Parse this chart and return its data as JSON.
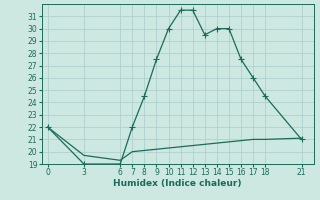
{
  "xlabel": "Humidex (Indice chaleur)",
  "bg_color": "#cce8e0",
  "grid_color": "#aacccc",
  "line_color": "#1a6b5a",
  "upper_x": [
    0,
    3,
    6,
    7,
    8,
    9,
    10,
    11,
    12,
    13,
    14,
    15,
    16,
    17,
    18,
    21
  ],
  "upper_y": [
    22,
    19,
    19,
    22,
    24.5,
    27.5,
    30,
    31.5,
    31.5,
    29.5,
    30,
    30,
    27.5,
    26,
    24.5,
    21
  ],
  "lower_x": [
    0,
    3,
    6,
    7,
    8,
    9,
    10,
    11,
    12,
    13,
    14,
    15,
    16,
    17,
    18,
    21
  ],
  "lower_y": [
    22,
    19.7,
    19.3,
    20.0,
    20.1,
    20.2,
    20.3,
    20.4,
    20.5,
    20.6,
    20.7,
    20.8,
    20.9,
    21.0,
    21.0,
    21.1
  ],
  "xlim": [
    -0.5,
    22
  ],
  "ylim": [
    19,
    32
  ],
  "xticks": [
    0,
    3,
    6,
    7,
    8,
    9,
    10,
    11,
    12,
    13,
    14,
    15,
    16,
    17,
    18,
    21
  ],
  "yticks": [
    19,
    20,
    21,
    22,
    23,
    24,
    25,
    26,
    27,
    28,
    29,
    30,
    31
  ],
  "markersize": 2.5,
  "linewidth": 0.9,
  "xlabel_fontsize": 6.5,
  "tick_fontsize": 5.5
}
